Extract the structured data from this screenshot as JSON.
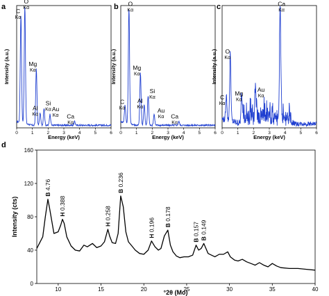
{
  "chart_data": [
    {
      "panel": "a",
      "type": "line",
      "color": "#1f3fd0",
      "xlabel": "Energy (keV)",
      "ylabel": "Intensity (a.u.)",
      "xlim": [
        0,
        6
      ],
      "ylim": [
        0,
        100
      ],
      "xticks": [
        "0",
        "1",
        "2",
        "3",
        "4",
        "5",
        "6"
      ],
      "peaks": [
        {
          "element": "C",
          "line": "Kα",
          "x": 0.27,
          "y": 88
        },
        {
          "element": "O",
          "line": "Kα",
          "x": 0.52,
          "y": 96
        },
        {
          "element": "Mg",
          "line": "Kα",
          "x": 1.25,
          "y": 46
        },
        {
          "element": "Si",
          "line": "Kα",
          "x": 1.74,
          "y": 14
        },
        {
          "element": "Al",
          "line": "Kα",
          "x": 1.49,
          "y": 10
        },
        {
          "element": "Au",
          "line": "Kα",
          "x": 2.12,
          "y": 9
        },
        {
          "element": "Ca",
          "line": "Kα",
          "x": 3.69,
          "y": 3
        }
      ]
    },
    {
      "panel": "b",
      "type": "line",
      "color": "#1f3fd0",
      "xlabel": "Energy (keV)",
      "ylabel": "Intensity (a.u.)",
      "xlim": [
        0,
        6
      ],
      "ylim": [
        0,
        100
      ],
      "xticks": [
        "0",
        "1",
        "2",
        "3",
        "4",
        "5",
        "6"
      ],
      "peaks": [
        {
          "element": "C",
          "line": "Kα",
          "x": 0.27,
          "y": 14
        },
        {
          "element": "O",
          "line": "Kα",
          "x": 0.52,
          "y": 94
        },
        {
          "element": "Mg",
          "line": "Kα",
          "x": 1.25,
          "y": 43
        },
        {
          "element": "Al",
          "line": "Kα",
          "x": 1.49,
          "y": 17
        },
        {
          "element": "Si",
          "line": "Kα",
          "x": 1.74,
          "y": 24
        },
        {
          "element": "Au",
          "line": "Kα",
          "x": 2.12,
          "y": 9
        },
        {
          "element": "Ca",
          "line": "Kα",
          "x": 3.69,
          "y": 3
        }
      ]
    },
    {
      "panel": "c",
      "type": "line",
      "color": "#1f3fd0",
      "xlabel": "Energy (keV)",
      "ylabel": "Intensity (a.u.)",
      "xlim": [
        0,
        6
      ],
      "ylim": [
        0,
        100
      ],
      "xticks": [
        "0",
        "1",
        "2",
        "3",
        "4",
        "5",
        "6"
      ],
      "peaks": [
        {
          "element": "C",
          "line": "Kα",
          "x": 0.27,
          "y": 20
        },
        {
          "element": "O",
          "line": "Kα",
          "x": 0.52,
          "y": 55
        },
        {
          "element": "Mg",
          "line": "Kα",
          "x": 1.25,
          "y": 22
        },
        {
          "element": "Au",
          "line": "Kα",
          "x": 2.12,
          "y": 26
        },
        {
          "element": "Ca",
          "line": "Kα",
          "x": 3.69,
          "y": 94
        }
      ]
    },
    {
      "panel": "d",
      "type": "line",
      "color": "#000000",
      "xlabel": "°2θ (Mo)",
      "ylabel": "Intensity (cts)",
      "xlim": [
        7.5,
        40
      ],
      "ylim": [
        0,
        160
      ],
      "xticks": [
        10,
        15,
        20,
        25,
        30,
        35,
        40
      ],
      "yticks": [
        0,
        40,
        80,
        120,
        160
      ],
      "x": [
        7.5,
        8.2,
        8.5,
        8.8,
        9.0,
        9.5,
        10.0,
        10.3,
        10.5,
        10.7,
        11.0,
        11.5,
        12.0,
        12.5,
        13.0,
        13.4,
        14.0,
        14.5,
        15.0,
        15.4,
        15.8,
        16.0,
        16.3,
        16.7,
        17.0,
        17.3,
        17.6,
        17.9,
        18.2,
        18.6,
        19.0,
        19.5,
        20.0,
        20.5,
        20.9,
        21.3,
        21.7,
        22.0,
        22.4,
        22.8,
        23.1,
        23.4,
        23.8,
        24.2,
        24.7,
        25.2,
        25.7,
        26.1,
        26.4,
        26.7,
        27.0,
        27.5,
        27.9,
        28.3,
        28.8,
        29.3,
        29.8,
        30.1,
        30.6,
        31.0,
        31.5,
        32.0,
        32.5,
        33.0,
        33.5,
        34.0,
        34.5,
        35.0,
        35.5,
        36.0,
        37.0,
        38.0,
        39.0,
        40.0
      ],
      "y": [
        42,
        56,
        80,
        101,
        90,
        60,
        62,
        70,
        77,
        72,
        56,
        45,
        40,
        39,
        46,
        44,
        48,
        43,
        45,
        50,
        65,
        57,
        49,
        48,
        60,
        105,
        92,
        62,
        50,
        45,
        40,
        36,
        35,
        40,
        51,
        44,
        40,
        42,
        57,
        64,
        46,
        38,
        33,
        31,
        32,
        32,
        34,
        46,
        40,
        42,
        48,
        36,
        34,
        32,
        35,
        35,
        38,
        32,
        28,
        27,
        29,
        26,
        24,
        22,
        25,
        22,
        20,
        24,
        21,
        19,
        18,
        18,
        17,
        16
      ],
      "annotations": [
        {
          "phase": "B",
          "value": "4.76",
          "x": 8.8
        },
        {
          "phase": "H",
          "value": "0.388",
          "x": 10.5
        },
        {
          "phase": "H",
          "value": "0.258",
          "x": 15.8
        },
        {
          "phase": "B",
          "value": "0.236",
          "x": 17.3
        },
        {
          "phase": "H",
          "value": "0.196",
          "x": 20.9
        },
        {
          "phase": "B",
          "value": "0.178",
          "x": 22.8
        },
        {
          "phase": "B",
          "value": "0.157",
          "x": 26.1
        },
        {
          "phase": "B",
          "value": "0.149",
          "x": 27.0
        }
      ]
    }
  ]
}
